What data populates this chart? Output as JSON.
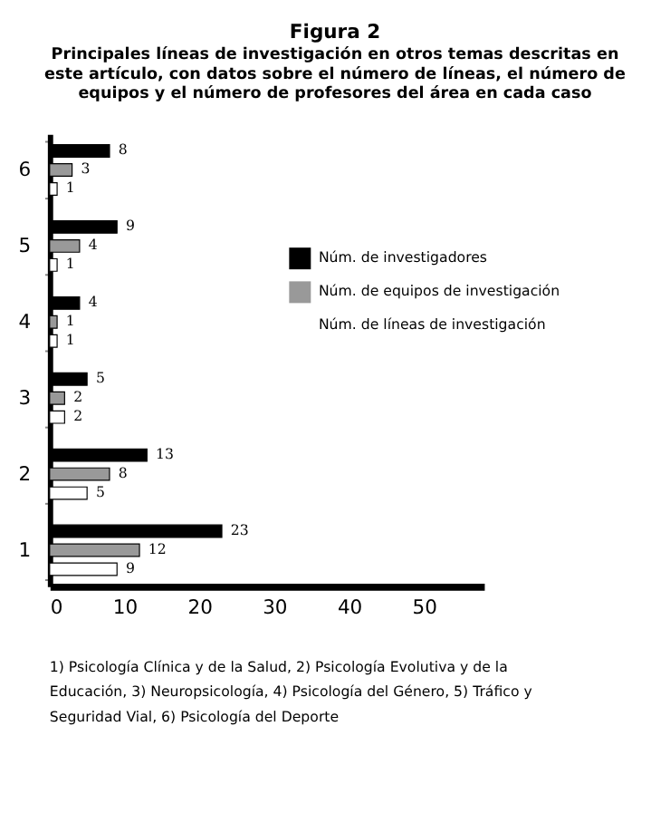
{
  "chart_data": {
    "type": "bar",
    "orientation": "horizontal",
    "title": "Figura 2",
    "subtitle": "Principales líneas de investigación en otros temas descritas en este artículo, con datos sobre el número de líneas, el número de equipos y el número de profesores del área en cada caso",
    "categories": [
      "6",
      "5",
      "4",
      "3",
      "2",
      "1"
    ],
    "series": [
      {
        "name": "Núm. de investigadores",
        "color": "#000000",
        "values": [
          8,
          9,
          4,
          5,
          13,
          23
        ]
      },
      {
        "name": "Núm. de equipos de investigación",
        "color": "#999999",
        "values": [
          3,
          4,
          1,
          2,
          8,
          12
        ]
      },
      {
        "name": "Núm. de líneas de investigación",
        "color": "#ffffff",
        "values": [
          1,
          1,
          1,
          2,
          5,
          9
        ]
      }
    ],
    "xlim": [
      0,
      58
    ],
    "xticks": [
      0,
      10,
      20,
      30,
      40,
      50
    ],
    "grid": false,
    "legend": "right",
    "data_labels": true,
    "annotations": [
      "1) Psicología Clínica y de la Salud, 2) Psicología Evolutiva y de la Educación, 3) Neuropsicología, 4) Psicología del Género, 5) Tráfico y Seguridad Vial, 6) Psicología del Deporte"
    ]
  }
}
